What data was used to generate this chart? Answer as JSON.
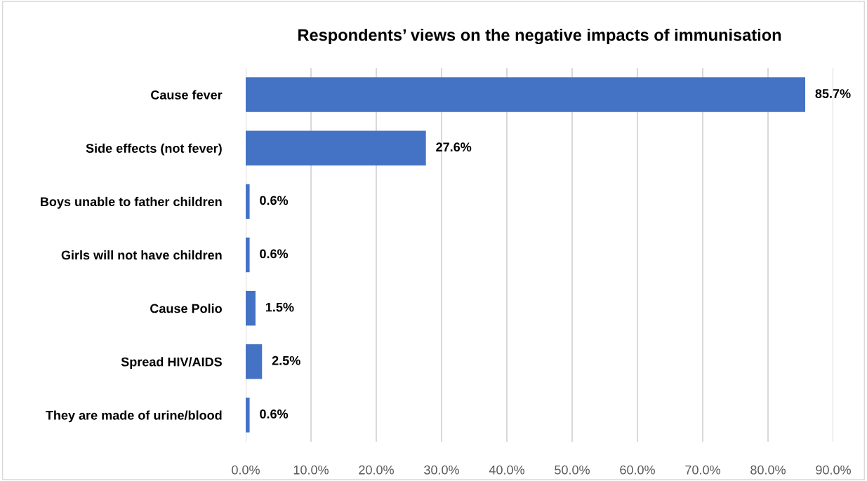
{
  "chart_data": {
    "type": "bar",
    "orientation": "horizontal",
    "title": "Respondents’ views on the negative impacts of immunisation",
    "categories": [
      "Cause fever",
      "Side effects (not fever)",
      "Boys unable to father children",
      "Girls will not have children",
      "Cause Polio",
      "Spread HIV/AIDS",
      "They are made of urine/blood"
    ],
    "values": [
      85.7,
      27.6,
      0.6,
      0.6,
      1.5,
      2.5,
      0.6
    ],
    "value_labels": [
      "85.7%",
      "27.6%",
      "0.6%",
      "0.6%",
      "1.5%",
      "2.5%",
      "0.6%"
    ],
    "color": "#4472c4",
    "xlim": [
      0,
      90
    ],
    "xticks": [
      {
        "value": 0,
        "label": "0.0%"
      },
      {
        "value": 10,
        "label": "10.0%"
      },
      {
        "value": 20,
        "label": "20.0%"
      },
      {
        "value": 30,
        "label": "30.0%"
      },
      {
        "value": 40,
        "label": "40.0%"
      },
      {
        "value": 50,
        "label": "50.0%"
      },
      {
        "value": 60,
        "label": "60.0%"
      },
      {
        "value": 70,
        "label": "70.0%"
      },
      {
        "value": 80,
        "label": "80.0%"
      },
      {
        "value": 90,
        "label": "90.0%"
      }
    ],
    "grid": "x"
  }
}
